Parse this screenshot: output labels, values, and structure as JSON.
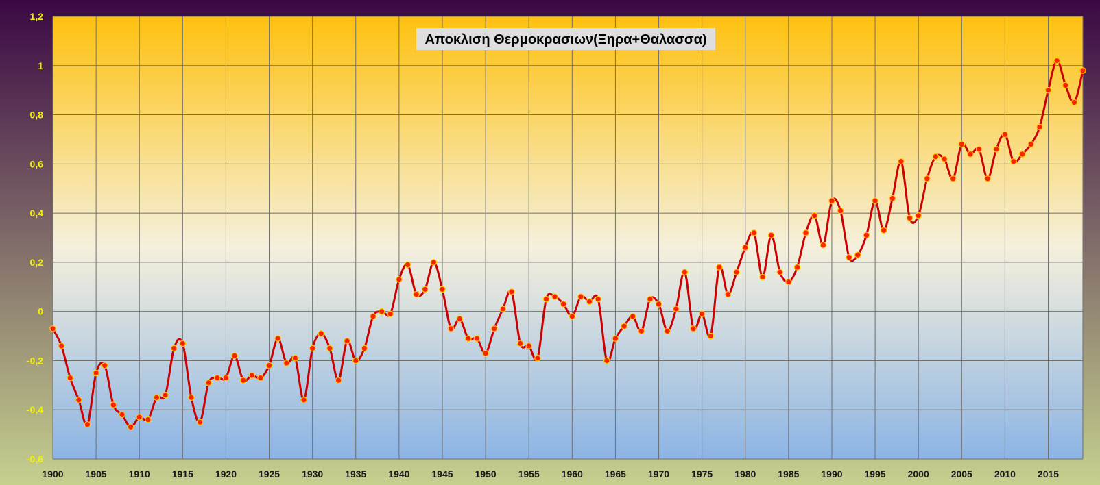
{
  "chart_data": {
    "type": "line",
    "title": "Αποκλιση Θερμοκρασιων(Ξηρα+Θαλασσα)",
    "xlabel": "",
    "ylabel": "",
    "xlim": [
      1900,
      2019
    ],
    "ylim": [
      -0.6,
      1.2
    ],
    "x_ticks": [
      1900,
      1905,
      1910,
      1915,
      1920,
      1925,
      1930,
      1935,
      1940,
      1945,
      1950,
      1955,
      1960,
      1965,
      1970,
      1975,
      1980,
      1985,
      1990,
      1995,
      2000,
      2005,
      2010,
      2015
    ],
    "y_ticks": [
      -0.6,
      -0.4,
      -0.2,
      0,
      0.2,
      0.4,
      0.6,
      0.8,
      1,
      1.2
    ],
    "y_tick_labels": [
      "-0,6",
      "-0,4",
      "-0,2",
      "0",
      "0,2",
      "0,4",
      "0,6",
      "0,8",
      "1",
      "1,2"
    ],
    "grid": true,
    "legend": "none",
    "smooth": true,
    "colors": {
      "line": "#cc0000",
      "marker_fill": "#ff2200",
      "marker_stroke": "#ffcc00",
      "frame_top": "#3a0844",
      "frame_bottom": "#c6d08e",
      "plot_top": "#ffc10e",
      "plot_mid": "#f5f0dc",
      "plot_bottom": "#8cb4e4",
      "title_box": "#dedede"
    },
    "series": [
      {
        "x": [
          1900,
          1901,
          1902,
          1903,
          1904,
          1905,
          1906,
          1907,
          1908,
          1909,
          1910,
          1911,
          1912,
          1913,
          1914,
          1915,
          1916,
          1917,
          1918,
          1919,
          1920,
          1921,
          1922,
          1923,
          1924,
          1925,
          1926,
          1927,
          1928,
          1929,
          1930,
          1931,
          1932,
          1933,
          1934,
          1935,
          1936,
          1937,
          1938,
          1939,
          1940,
          1941,
          1942,
          1943,
          1944,
          1945,
          1946,
          1947,
          1948,
          1949,
          1950,
          1951,
          1952,
          1953,
          1954,
          1955,
          1956,
          1957,
          1958,
          1959,
          1960,
          1961,
          1962,
          1963,
          1964,
          1965,
          1966,
          1967,
          1968,
          1969,
          1970,
          1971,
          1972,
          1973,
          1974,
          1975,
          1976,
          1977,
          1978,
          1979,
          1980,
          1981,
          1982,
          1983,
          1984,
          1985,
          1986,
          1987,
          1988,
          1989,
          1990,
          1991,
          1992,
          1993,
          1994,
          1995,
          1996,
          1997,
          1998,
          1999,
          2000,
          2001,
          2002,
          2003,
          2004,
          2005,
          2006,
          2007,
          2008,
          2009,
          2010,
          2011,
          2012,
          2013,
          2014,
          2015,
          2016,
          2017,
          2018,
          2019
        ],
        "values": [
          -0.07,
          -0.14,
          -0.27,
          -0.36,
          -0.46,
          -0.25,
          -0.22,
          -0.38,
          -0.42,
          -0.47,
          -0.43,
          -0.44,
          -0.35,
          -0.34,
          -0.15,
          -0.13,
          -0.35,
          -0.45,
          -0.29,
          -0.27,
          -0.27,
          -0.18,
          -0.28,
          -0.26,
          -0.27,
          -0.22,
          -0.11,
          -0.21,
          -0.19,
          -0.36,
          -0.15,
          -0.09,
          -0.15,
          -0.28,
          -0.12,
          -0.2,
          -0.15,
          -0.02,
          0.0,
          -0.01,
          0.13,
          0.19,
          0.07,
          0.09,
          0.2,
          0.09,
          -0.07,
          -0.03,
          -0.11,
          -0.11,
          -0.17,
          -0.07,
          0.01,
          0.08,
          -0.13,
          -0.14,
          -0.19,
          0.05,
          0.06,
          0.03,
          -0.02,
          0.06,
          0.04,
          0.05,
          -0.2,
          -0.11,
          -0.06,
          -0.02,
          -0.08,
          0.05,
          0.03,
          -0.08,
          0.01,
          0.16,
          -0.07,
          -0.01,
          -0.1,
          0.18,
          0.07,
          0.16,
          0.26,
          0.32,
          0.14,
          0.31,
          0.16,
          0.12,
          0.18,
          0.32,
          0.39,
          0.27,
          0.45,
          0.41,
          0.22,
          0.23,
          0.31,
          0.45,
          0.33,
          0.46,
          0.61,
          0.38,
          0.39,
          0.54,
          0.63,
          0.62,
          0.54,
          0.68,
          0.64,
          0.66,
          0.54,
          0.66,
          0.72,
          0.61,
          0.64,
          0.68,
          0.75,
          0.9,
          1.02,
          0.92,
          0.85,
          0.98
        ]
      }
    ]
  }
}
